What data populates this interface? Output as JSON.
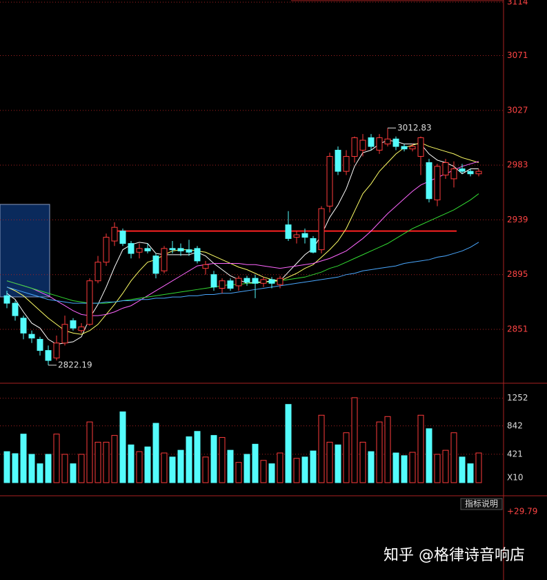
{
  "chart_data": {
    "type": "candlestick",
    "open": [
      2878,
      2872,
      2860,
      2847,
      2843,
      2834,
      2828,
      2840,
      2858,
      2850,
      2855,
      2890,
      2905,
      2922,
      2930,
      2920,
      2913,
      2916,
      2910,
      2898,
      2916,
      2916,
      2915,
      2916,
      2900,
      2895,
      2884,
      2890,
      2886,
      2892,
      2892,
      2888,
      2891,
      2887,
      2935,
      2925,
      2928,
      2924,
      2915,
      2950,
      2995,
      2978,
      2990,
      2995,
      3005,
      2995,
      3000,
      3004,
      2998,
      2996,
      2990,
      2985,
      2955,
      2975,
      2972,
      2980,
      2978,
      2976
    ],
    "high": [
      2882,
      2874,
      2862,
      2850,
      2845,
      2838,
      2846,
      2862,
      2860,
      2856,
      2892,
      2910,
      2928,
      2937,
      2932,
      2922,
      2920,
      2920,
      2912,
      2918,
      2922,
      2920,
      2923,
      2918,
      2906,
      2898,
      2892,
      2892,
      2894,
      2894,
      2895,
      2893,
      2893,
      2894,
      2946,
      2930,
      2932,
      2926,
      2950,
      2993,
      2998,
      2995,
      3006,
      3008,
      3008,
      3008,
      3012.83,
      3006,
      3000,
      3000,
      3006,
      2988,
      2984,
      2988,
      2986,
      2984,
      2980,
      2980
    ],
    "low": [
      2868,
      2858,
      2843,
      2840,
      2830,
      2822.19,
      2826,
      2838,
      2850,
      2848,
      2854,
      2888,
      2902,
      2918,
      2918,
      2908,
      2908,
      2912,
      2892,
      2896,
      2912,
      2910,
      2910,
      2904,
      2895,
      2882,
      2880,
      2882,
      2882,
      2886,
      2876,
      2885,
      2884,
      2884,
      2922,
      2920,
      2920,
      2912,
      2912,
      2945,
      2975,
      2975,
      2985,
      2990,
      2995,
      2992,
      2998,
      2995,
      2994,
      2994,
      2975,
      2953,
      2950,
      2972,
      2965,
      2976,
      2974,
      2974
    ],
    "close": [
      2872,
      2862,
      2848,
      2844,
      2834,
      2826,
      2840,
      2855,
      2852,
      2853,
      2890,
      2905,
      2925,
      2933,
      2920,
      2912,
      2916,
      2914,
      2896,
      2916,
      2915,
      2914,
      2913,
      2906,
      2903,
      2885,
      2890,
      2884,
      2892,
      2889,
      2888,
      2891,
      2888,
      2892,
      2924,
      2927,
      2925,
      2913,
      2948,
      2990,
      2978,
      2990,
      3005,
      3003,
      2998,
      3005,
      3004,
      2998,
      2996,
      2998,
      3005,
      2956,
      2982,
      2985,
      2980,
      2978,
      2976,
      2978
    ],
    "volume": [
      460,
      430,
      720,
      420,
      280,
      420,
      720,
      420,
      280,
      420,
      900,
      600,
      600,
      700,
      1050,
      560,
      460,
      530,
      880,
      440,
      380,
      480,
      680,
      760,
      380,
      700,
      670,
      480,
      300,
      420,
      570,
      330,
      280,
      440,
      1160,
      360,
      380,
      470,
      1000,
      600,
      560,
      740,
      1260,
      600,
      460,
      900,
      980,
      440,
      400,
      450,
      1000,
      800,
      420,
      480,
      740,
      380,
      280,
      440
    ],
    "lines": [
      {
        "color": "#ffffff",
        "values": [
          2880,
          2875,
          2865,
          2856,
          2852,
          2843,
          2839,
          2840,
          2841,
          2845,
          2860,
          2871,
          2885,
          2901,
          2915,
          2919,
          2921,
          2920,
          2912,
          2911,
          2911,
          2911,
          2911,
          2913,
          2910,
          2904,
          2899,
          2894,
          2891,
          2888,
          2889,
          2889,
          2890,
          2890,
          2897,
          2904,
          2911,
          2916,
          2927,
          2941,
          2951,
          2964,
          2982,
          2993,
          2995,
          3000,
          3003,
          3002,
          3000,
          3000,
          3000,
          2992,
          2987,
          2985,
          2982,
          2976,
          2980,
          2980
        ]
      },
      {
        "color": "#ffff66",
        "values": [
          2885,
          2882,
          2878,
          2872,
          2866,
          2860,
          2855,
          2850,
          2848,
          2847,
          2850,
          2855,
          2863,
          2871,
          2880,
          2890,
          2898,
          2905,
          2907,
          2911,
          2914,
          2915,
          2915,
          2914,
          2913,
          2910,
          2907,
          2904,
          2901,
          2899,
          2896,
          2893,
          2891,
          2890,
          2893,
          2896,
          2900,
          2903,
          2909,
          2915,
          2922,
          2932,
          2946,
          2960,
          2968,
          2978,
          2985,
          2992,
          2997,
          2999,
          3001,
          2998,
          2996,
          2994,
          2992,
          2989,
          2987,
          2985
        ]
      },
      {
        "color": "#ff66ff",
        "values": [
          2890,
          2888,
          2886,
          2884,
          2881,
          2878,
          2874,
          2870,
          2866,
          2863,
          2862,
          2862,
          2863,
          2865,
          2868,
          2870,
          2874,
          2878,
          2882,
          2886,
          2890,
          2894,
          2898,
          2902,
          2903,
          2904,
          2904,
          2904,
          2904,
          2903,
          2903,
          2902,
          2901,
          2900,
          2901,
          2902,
          2903,
          2904,
          2906,
          2908,
          2911,
          2914,
          2919,
          2924,
          2930,
          2937,
          2944,
          2950,
          2956,
          2962,
          2967,
          2970,
          2973,
          2976,
          2979,
          2982,
          2984,
          2986
        ]
      },
      {
        "color": "#33dd33",
        "values": [
          2890,
          2888,
          2886,
          2884,
          2882,
          2880,
          2878,
          2876,
          2874,
          2873,
          2872,
          2872,
          2872,
          2873,
          2874,
          2875,
          2876,
          2877,
          2878,
          2879,
          2880,
          2881,
          2882,
          2883,
          2884,
          2885,
          2886,
          2887,
          2887,
          2888,
          2888,
          2889,
          2889,
          2890,
          2891,
          2892,
          2893,
          2895,
          2897,
          2900,
          2902,
          2905,
          2908,
          2911,
          2914,
          2917,
          2920,
          2924,
          2928,
          2932,
          2935,
          2938,
          2941,
          2944,
          2947,
          2951,
          2955,
          2960
        ]
      },
      {
        "color": "#4aa8ff",
        "values": [
          2885,
          2883,
          2881,
          2879,
          2877,
          2875,
          2874,
          2873,
          2872,
          2872,
          2872,
          2872,
          2873,
          2873,
          2874,
          2874,
          2875,
          2875,
          2876,
          2876,
          2877,
          2877,
          2878,
          2878,
          2879,
          2879,
          2880,
          2880,
          2881,
          2882,
          2883,
          2884,
          2885,
          2886,
          2887,
          2888,
          2889,
          2890,
          2891,
          2892,
          2893,
          2895,
          2896,
          2898,
          2899,
          2900,
          2901,
          2902,
          2904,
          2905,
          2906,
          2907,
          2909,
          2910,
          2912,
          2914,
          2917,
          2921
        ]
      }
    ],
    "up_color": "#ff3b3b",
    "down_color": "#54fcfc",
    "ylim": [
      2807.7,
      3115.7
    ],
    "yticks": [
      2851,
      2895,
      2939,
      2983,
      3027,
      3071,
      3114
    ],
    "volume_ylim": [
      0,
      1290
    ],
    "volume_yticks": [
      421,
      842,
      1252
    ],
    "volume_unit": "X10",
    "resistance": 2930,
    "annotations": [
      "3012.83",
      "2822.19"
    ],
    "indicator_value": "+29.79",
    "indicator_button": "指标说明",
    "watermark": "知乎 @格律诗音响店",
    "grid": true
  }
}
